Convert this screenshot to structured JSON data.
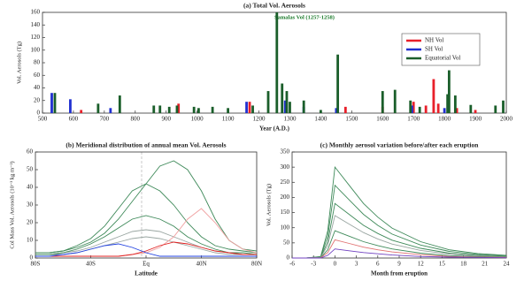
{
  "chart_data": [
    {
      "type": "bar",
      "title": "(a) Total Vol. Aerosols",
      "xlabel": "Year (A.D.)",
      "ylabel": "Vol. Aerosols (Tg)",
      "annotation": "Samalas Vol (1257-1258)",
      "legend": "upper right",
      "xlim": [
        500,
        2000
      ],
      "xticks": [
        500,
        600,
        700,
        800,
        900,
        1000,
        1100,
        1200,
        1300,
        1400,
        1500,
        1600,
        1700,
        1800,
        1900,
        2000
      ],
      "ylim": [
        0,
        160
      ],
      "yticks": [
        0,
        20,
        40,
        60,
        80,
        100,
        120,
        140,
        160
      ],
      "series": [
        {
          "name": "NH Vol",
          "color": "#e8202a",
          "x": [
            625,
            940,
            1170,
            1480,
            1600,
            1700,
            1740,
            1765,
            1780,
            1840,
            1900
          ],
          "values": [
            5,
            15,
            18,
            10,
            10,
            18,
            12,
            54,
            15,
            8,
            5
          ]
        },
        {
          "name": "SH Vol",
          "color": "#2030d0",
          "x": [
            530,
            590,
            720,
            1160,
            1285,
            1345,
            1450,
            1695,
            1800
          ],
          "values": [
            32,
            22,
            8,
            18,
            20,
            10,
            8,
            12,
            8
          ]
        },
        {
          "name": "Equatorial Vol",
          "color": "#1a5e2a",
          "x": [
            540,
            680,
            750,
            860,
            880,
            910,
            935,
            990,
            1005,
            1050,
            1100,
            1180,
            1230,
            1258,
            1275,
            1290,
            1300,
            1345,
            1400,
            1455,
            1600,
            1640,
            1690,
            1720,
            1810,
            1815,
            1835,
            1885,
            1965,
            1990
          ],
          "values": [
            32,
            15,
            28,
            12,
            12,
            10,
            12,
            10,
            8,
            10,
            8,
            12,
            35,
            160,
            47,
            35,
            18,
            20,
            5,
            93,
            35,
            37,
            20,
            10,
            30,
            68,
            28,
            13,
            12,
            20
          ]
        }
      ]
    },
    {
      "type": "line",
      "title": "(b) Meridional distribution of annual mean Vol. Aerosols",
      "xlabel": "Latitude",
      "ylabel": "Col Mass Vol. Aerosols (10⁻³ kg m⁻²)",
      "xlim": [
        -80,
        80
      ],
      "xticks": [
        {
          "value": -80,
          "label": "80S"
        },
        {
          "value": -40,
          "label": "40S"
        },
        {
          "value": 0,
          "label": "Eq"
        },
        {
          "value": 40,
          "label": "40N"
        },
        {
          "value": 80,
          "label": "80N"
        }
      ],
      "ylim": [
        0,
        60
      ],
      "yticks": [
        0,
        10,
        20,
        30,
        40,
        50,
        60
      ],
      "x": [
        -80,
        -70,
        -60,
        -50,
        -40,
        -30,
        -20,
        -10,
        0,
        10,
        20,
        30,
        40,
        50,
        60,
        70,
        80
      ],
      "series": [
        {
          "color": "#9aa6a2",
          "values": [
            2,
            2,
            3,
            4,
            6,
            9,
            12,
            15,
            16,
            15,
            12,
            9,
            6,
            4,
            3,
            2,
            2
          ]
        },
        {
          "color": "#9aa6a2",
          "values": [
            2,
            2,
            2,
            3,
            5,
            7,
            9,
            11,
            12,
            11,
            9,
            7,
            5,
            3,
            2,
            2,
            2
          ]
        },
        {
          "color": "#3f8a5a",
          "values": [
            2,
            2,
            3,
            5,
            8,
            12,
            17,
            22,
            24,
            22,
            18,
            12,
            8,
            5,
            3,
            3,
            2
          ]
        },
        {
          "color": "#3f8a5a",
          "values": [
            3,
            3,
            4,
            7,
            11,
            18,
            28,
            38,
            42,
            38,
            30,
            20,
            12,
            7,
            5,
            4,
            3
          ]
        },
        {
          "color": "#3f8a5a",
          "values": [
            3,
            3,
            4,
            6,
            9,
            14,
            22,
            32,
            42,
            52,
            55,
            50,
            38,
            22,
            10,
            5,
            4
          ]
        },
        {
          "color": "#f0a0a0",
          "values": [
            1,
            1,
            1,
            1,
            1,
            1,
            1,
            2,
            3,
            6,
            12,
            22,
            28,
            20,
            10,
            5,
            3
          ]
        },
        {
          "color": "#e02020",
          "values": [
            1,
            1,
            1,
            1,
            1,
            1,
            1,
            2,
            4,
            7,
            9,
            8,
            6,
            4,
            3,
            2,
            2
          ]
        },
        {
          "color": "#2040e0",
          "values": [
            1,
            1,
            2,
            3,
            5,
            7,
            8,
            6,
            3,
            1,
            1,
            1,
            1,
            1,
            1,
            1,
            1
          ]
        }
      ]
    },
    {
      "type": "line",
      "title": "(c) Monthly aerosol variation before/after each eruption",
      "xlabel": "Month from eruption",
      "ylabel": "Vol. Aerosols (Tg)",
      "xlim": [
        -6,
        24
      ],
      "xticks": [
        -6,
        -3,
        0,
        3,
        6,
        9,
        12,
        15,
        18,
        21,
        24
      ],
      "ylim": [
        0,
        350
      ],
      "yticks": [
        0,
        50,
        100,
        150,
        200,
        250,
        300,
        350
      ],
      "x": [
        -6,
        -4,
        -2,
        -1,
        0,
        2,
        4,
        6,
        8,
        12,
        16,
        20,
        24
      ],
      "series": [
        {
          "color": "#3f8a5a",
          "values": [
            0,
            0,
            5,
            90,
            300,
            240,
            180,
            135,
            99,
            54,
            27,
            15,
            9
          ]
        },
        {
          "color": "#3f8a5a",
          "values": [
            0,
            0,
            4,
            72,
            240,
            192,
            144,
            108,
            79,
            43,
            22,
            12,
            7
          ]
        },
        {
          "color": "#3f8a5a",
          "values": [
            0,
            0,
            3,
            54,
            180,
            144,
            108,
            81,
            59,
            32,
            16,
            9,
            5
          ]
        },
        {
          "color": "#9aa6a2",
          "values": [
            0,
            0,
            2,
            42,
            140,
            112,
            84,
            63,
            46,
            25,
            13,
            7,
            4
          ]
        },
        {
          "color": "#3f8a5a",
          "values": [
            0,
            0,
            1,
            27,
            90,
            72,
            54,
            41,
            30,
            16,
            8,
            5,
            3
          ]
        },
        {
          "color": "#e07070",
          "values": [
            0,
            0,
            1,
            18,
            60,
            48,
            36,
            27,
            20,
            11,
            5,
            3,
            2
          ]
        },
        {
          "color": "#7040c0",
          "values": [
            0,
            0,
            0,
            9,
            30,
            24,
            18,
            14,
            10,
            5,
            3,
            2,
            1
          ]
        }
      ]
    }
  ]
}
